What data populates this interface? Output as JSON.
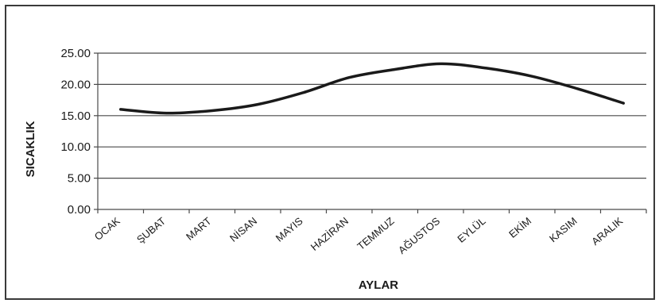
{
  "chart_data": {
    "type": "line",
    "title": "",
    "xlabel": "AYLAR",
    "ylabel": "SICAKLIK",
    "categories": [
      "OCAK",
      "ŞUBAT",
      "MART",
      "NİSAN",
      "MAYIS",
      "HAZİRAN",
      "TEMMUZ",
      "AĞUSTOS",
      "EYLÜL",
      "EKİM",
      "KASIM",
      "ARALIK"
    ],
    "series": [
      {
        "values": [
          16.0,
          15.4,
          15.8,
          16.8,
          18.7,
          21.1,
          22.4,
          23.3,
          22.6,
          21.3,
          19.3,
          17.0
        ],
        "color": "#1a1a1a"
      }
    ],
    "ylim": [
      0,
      25
    ],
    "yticks": [
      0,
      5,
      10,
      15,
      20,
      25
    ],
    "ytick_labels": [
      "0.00",
      "5.00",
      "10.00",
      "15.00",
      "20.00",
      "25.00"
    ],
    "grid": true,
    "grid_axis": "y",
    "legend": "none"
  }
}
